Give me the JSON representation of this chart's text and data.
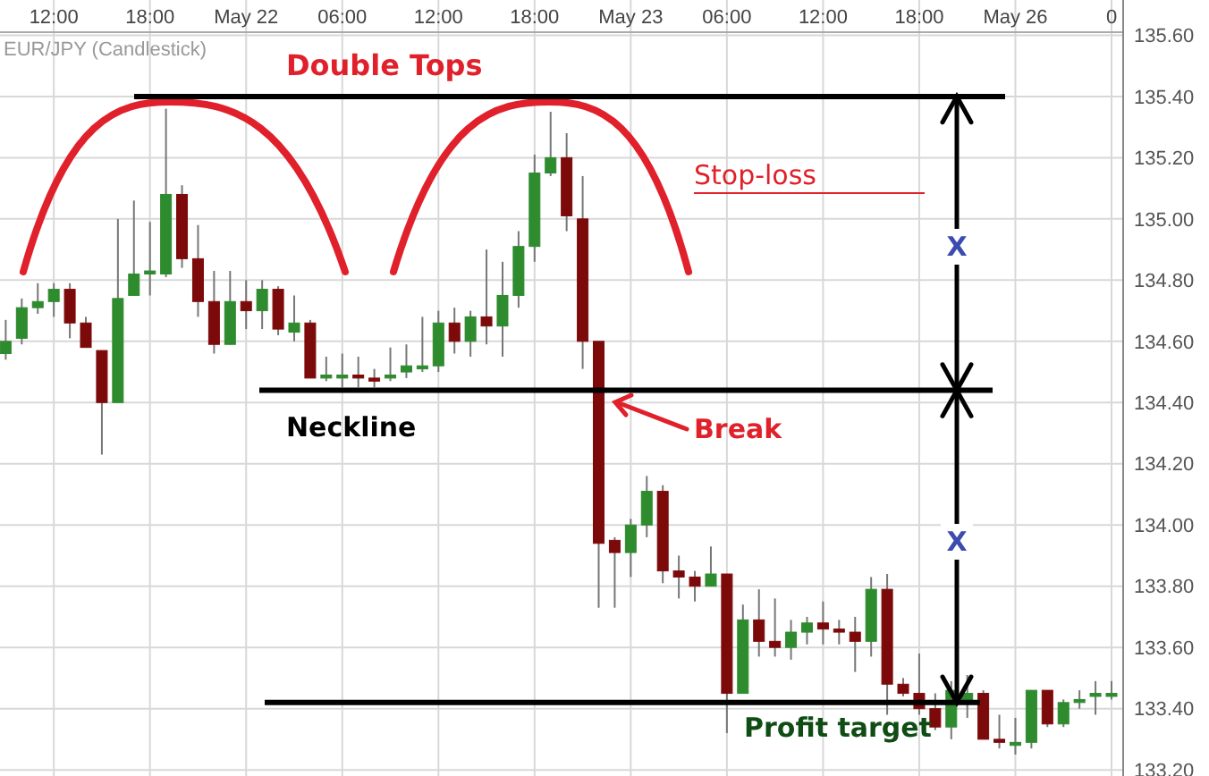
{
  "chart_data": {
    "type": "candlestick",
    "title": "EUR/JPY (Candlestick)",
    "categories": [
      null,
      null,
      null,
      "12:00",
      null,
      null,
      null,
      null,
      null,
      "18:00",
      null,
      null,
      null,
      null,
      null,
      "May 22",
      null,
      null,
      null,
      null,
      null,
      "06:00",
      null,
      null,
      null,
      null,
      null,
      "12:00",
      null,
      null,
      null,
      null,
      null,
      "18:00",
      null,
      null,
      null,
      null,
      null,
      "May 23",
      null,
      null,
      null,
      null,
      null,
      "06:00",
      null,
      null,
      null,
      null,
      null,
      "12:00",
      null,
      null,
      null,
      null,
      null,
      "18:00",
      null,
      null,
      null,
      null,
      null,
      "May 26",
      null,
      null,
      null,
      null,
      null,
      "0"
    ],
    "ohlc": [
      [
        134.56,
        134.67,
        134.54,
        134.6
      ],
      [
        134.61,
        134.74,
        134.59,
        134.71
      ],
      [
        134.71,
        134.79,
        134.69,
        134.73
      ],
      [
        134.73,
        134.79,
        134.68,
        134.77
      ],
      [
        134.77,
        134.79,
        134.61,
        134.66
      ],
      [
        134.66,
        134.68,
        134.58,
        134.58
      ],
      [
        134.57,
        134.57,
        134.23,
        134.4
      ],
      [
        134.4,
        135.0,
        134.4,
        134.74
      ],
      [
        134.75,
        135.06,
        134.75,
        134.82
      ],
      [
        134.82,
        134.99,
        134.75,
        134.83
      ],
      [
        134.82,
        135.36,
        134.81,
        135.08
      ],
      [
        135.08,
        135.11,
        134.84,
        134.87
      ],
      [
        134.87,
        134.98,
        134.68,
        134.73
      ],
      [
        134.73,
        134.83,
        134.56,
        134.59
      ],
      [
        134.59,
        134.83,
        134.59,
        134.73
      ],
      [
        134.73,
        134.8,
        134.64,
        134.7
      ],
      [
        134.7,
        134.8,
        134.64,
        134.77
      ],
      [
        134.77,
        134.78,
        134.62,
        134.64
      ],
      [
        134.63,
        134.75,
        134.6,
        134.66
      ],
      [
        134.66,
        134.67,
        134.48,
        134.48
      ],
      [
        134.48,
        134.55,
        134.47,
        134.49
      ],
      [
        134.48,
        134.56,
        134.45,
        134.49
      ],
      [
        134.49,
        134.55,
        134.45,
        134.48
      ],
      [
        134.48,
        134.51,
        134.45,
        134.47
      ],
      [
        134.48,
        134.58,
        134.47,
        134.49
      ],
      [
        134.5,
        134.59,
        134.48,
        134.52
      ],
      [
        134.51,
        134.68,
        134.5,
        134.52
      ],
      [
        134.52,
        134.7,
        134.5,
        134.66
      ],
      [
        134.66,
        134.71,
        134.56,
        134.6
      ],
      [
        134.6,
        134.7,
        134.55,
        134.68
      ],
      [
        134.68,
        134.9,
        134.59,
        134.65
      ],
      [
        134.65,
        134.86,
        134.55,
        134.75
      ],
      [
        134.75,
        134.96,
        134.71,
        134.91
      ],
      [
        134.91,
        135.21,
        134.86,
        135.15
      ],
      [
        135.15,
        135.35,
        135.14,
        135.2
      ],
      [
        135.2,
        135.28,
        134.96,
        135.01
      ],
      [
        135.0,
        135.14,
        134.51,
        134.6
      ],
      [
        134.6,
        134.6,
        133.73,
        133.94
      ],
      [
        133.95,
        133.96,
        133.73,
        133.91
      ],
      [
        133.91,
        134.02,
        133.83,
        134.0
      ],
      [
        134.0,
        134.16,
        133.96,
        134.11
      ],
      [
        134.11,
        134.13,
        133.81,
        133.85
      ],
      [
        133.85,
        133.9,
        133.76,
        133.83
      ],
      [
        133.83,
        133.85,
        133.75,
        133.8
      ],
      [
        133.8,
        133.93,
        133.8,
        133.84
      ],
      [
        133.84,
        133.84,
        133.32,
        133.45
      ],
      [
        133.45,
        133.74,
        133.45,
        133.69
      ],
      [
        133.69,
        133.79,
        133.57,
        133.62
      ],
      [
        133.62,
        133.76,
        133.57,
        133.6
      ],
      [
        133.6,
        133.69,
        133.56,
        133.65
      ],
      [
        133.65,
        133.7,
        133.61,
        133.68
      ],
      [
        133.68,
        133.75,
        133.61,
        133.66
      ],
      [
        133.66,
        133.69,
        133.61,
        133.65
      ],
      [
        133.65,
        133.7,
        133.52,
        133.62
      ],
      [
        133.62,
        133.83,
        133.57,
        133.79
      ],
      [
        133.79,
        133.84,
        133.38,
        133.48
      ],
      [
        133.48,
        133.5,
        133.44,
        133.45
      ],
      [
        133.45,
        133.58,
        133.38,
        133.4
      ],
      [
        133.4,
        133.45,
        133.33,
        133.34
      ],
      [
        133.34,
        133.49,
        133.3,
        133.46
      ],
      [
        133.42,
        133.51,
        133.37,
        133.45
      ],
      [
        133.45,
        133.46,
        133.3,
        133.3
      ],
      [
        133.3,
        133.38,
        133.27,
        133.29
      ],
      [
        133.28,
        133.37,
        133.25,
        133.29
      ],
      [
        133.29,
        133.46,
        133.27,
        133.46
      ],
      [
        133.46,
        133.46,
        133.34,
        133.35
      ],
      [
        133.35,
        133.43,
        133.34,
        133.42
      ],
      [
        133.42,
        133.46,
        133.4,
        133.43
      ],
      [
        133.44,
        133.49,
        133.38,
        133.45
      ],
      [
        133.44,
        133.49,
        133.43,
        133.45
      ]
    ],
    "ylim": [
      133.18,
      135.61
    ],
    "yticks": [
      {
        "value": 133.2,
        "label": "133.20"
      },
      {
        "value": 133.4,
        "label": "133.40"
      },
      {
        "value": 133.6,
        "label": "133.60"
      },
      {
        "value": 133.8,
        "label": "133.80"
      },
      {
        "value": 134.0,
        "label": "134.00"
      },
      {
        "value": 134.2,
        "label": "134.20"
      },
      {
        "value": 134.4,
        "label": "134.40"
      },
      {
        "value": 134.6,
        "label": "134.60"
      },
      {
        "value": 134.8,
        "label": "134.80"
      },
      {
        "value": 135.0,
        "label": "135.00"
      },
      {
        "value": 135.2,
        "label": "135.20"
      },
      {
        "value": 135.4,
        "label": "135.40"
      },
      {
        "value": 135.6,
        "label": "135.60"
      }
    ],
    "grid": true,
    "ref_lines": [
      {
        "axis": "y",
        "value": 135.4,
        "color": "#000000"
      },
      {
        "axis": "y",
        "value": 134.44,
        "label": "Neckline",
        "color": "#000000"
      },
      {
        "axis": "y",
        "value": 133.42,
        "label": "Profit target",
        "color": "#000000"
      }
    ],
    "annotations": [
      "Double Tops",
      "Stop-loss",
      "Break",
      "X",
      "X"
    ]
  }
}
